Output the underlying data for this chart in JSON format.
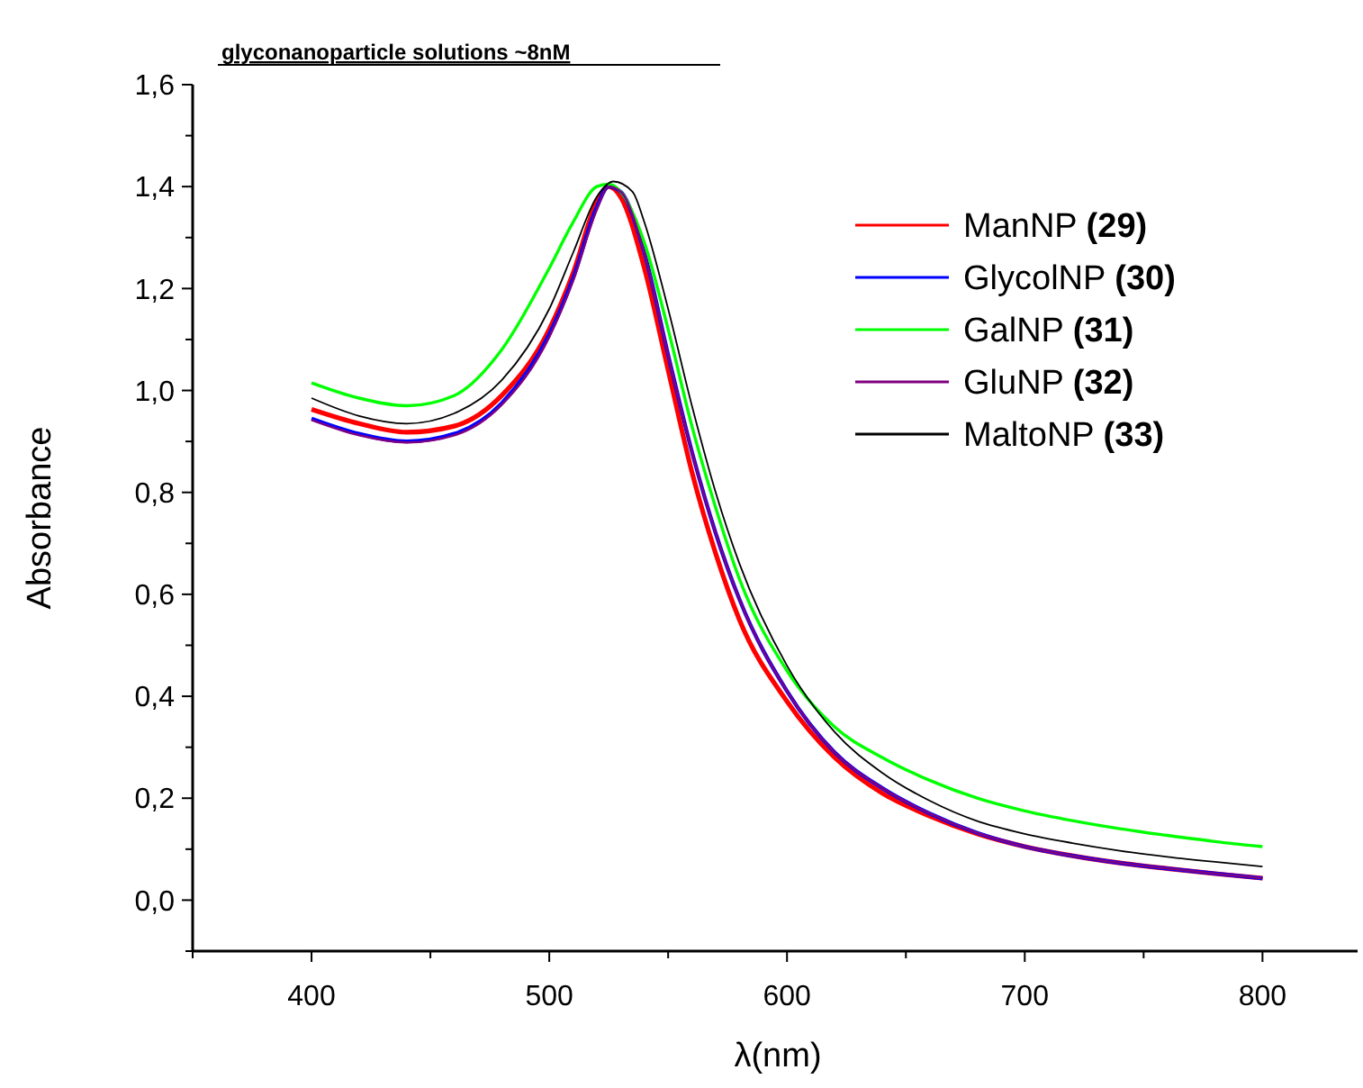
{
  "chart_data": {
    "type": "line",
    "title": "glyconanoparticle solutions ~8nM",
    "xlabel": "λ(nm)",
    "ylabel": "Absorbance",
    "xlim": [
      350,
      840
    ],
    "ylim": [
      -0.1,
      1.6
    ],
    "xticks": [
      {
        "value": 350,
        "label": null
      },
      400,
      {
        "value": 450,
        "label": null
      },
      500,
      {
        "value": 550,
        "label": null
      },
      600,
      {
        "value": 650,
        "label": null
      },
      700,
      {
        "value": 750,
        "label": null
      },
      800
    ],
    "yticks": [
      {
        "value": -0.1,
        "label": null
      },
      {
        "value": 0,
        "label": "0,0"
      },
      {
        "value": 0.1,
        "label": null
      },
      {
        "value": 0.2,
        "label": "0,2"
      },
      {
        "value": 0.3,
        "label": null
      },
      {
        "value": 0.4,
        "label": "0,4"
      },
      {
        "value": 0.5,
        "label": null
      },
      {
        "value": 0.6,
        "label": "0,6"
      },
      {
        "value": 0.7,
        "label": null
      },
      {
        "value": 0.8,
        "label": "0,8"
      },
      {
        "value": 0.9,
        "label": null
      },
      {
        "value": 1.0,
        "label": "1,0"
      },
      {
        "value": 1.1,
        "label": null
      },
      {
        "value": 1.2,
        "label": "1,2"
      },
      {
        "value": 1.3,
        "label": null
      },
      {
        "value": 1.4,
        "label": "1,4"
      },
      {
        "value": 1.5,
        "label": null
      },
      {
        "value": 1.6,
        "label": "1,6"
      }
    ],
    "grid": false,
    "legend": "top right",
    "marker": "none",
    "line_style": "solid",
    "series": [
      {
        "name": "ManNP (29)",
        "color": "#ff0000",
        "x": [
          400,
          420,
          440,
          460,
          480,
          500,
          510,
          520,
          525,
          530,
          540,
          550,
          560,
          570,
          580,
          600,
          620,
          640,
          660,
          680,
          700,
          720,
          740,
          760,
          780,
          800
        ],
        "values": [
          0.963,
          0.935,
          0.918,
          0.93,
          0.99,
          1.12,
          1.23,
          1.37,
          1.4,
          1.38,
          1.24,
          1.04,
          0.84,
          0.68,
          0.55,
          0.39,
          0.28,
          0.21,
          0.165,
          0.13,
          0.105,
          0.087,
          0.073,
          0.062,
          0.052,
          0.043
        ]
      },
      {
        "name": "GlycolNP (30)",
        "color": "#0000ff",
        "x": [
          400,
          420,
          440,
          460,
          480,
          500,
          510,
          520,
          525,
          530,
          540,
          550,
          560,
          570,
          580,
          600,
          620,
          640,
          660,
          680,
          700,
          720,
          740,
          760,
          780,
          800
        ],
        "values": [
          0.945,
          0.915,
          0.9,
          0.915,
          0.975,
          1.11,
          1.22,
          1.36,
          1.4,
          1.39,
          1.27,
          1.07,
          0.88,
          0.72,
          0.59,
          0.41,
          0.29,
          0.22,
          0.17,
          0.132,
          0.105,
          0.087,
          0.073,
          0.062,
          0.052,
          0.043
        ]
      },
      {
        "name": "GalNP (31)",
        "color": "#00ff00",
        "x": [
          400,
          420,
          440,
          460,
          480,
          500,
          510,
          520,
          525,
          530,
          540,
          550,
          560,
          570,
          580,
          600,
          620,
          640,
          660,
          680,
          700,
          720,
          740,
          760,
          780,
          800
        ],
        "values": [
          1.015,
          0.985,
          0.97,
          0.99,
          1.08,
          1.24,
          1.33,
          1.4,
          1.405,
          1.39,
          1.29,
          1.12,
          0.93,
          0.77,
          0.63,
          0.45,
          0.34,
          0.28,
          0.235,
          0.2,
          0.175,
          0.156,
          0.14,
          0.127,
          0.115,
          0.105
        ]
      },
      {
        "name": "GluNP (32)",
        "color": "#800080",
        "x": [
          400,
          420,
          440,
          460,
          480,
          500,
          510,
          520,
          525,
          530,
          540,
          550,
          560,
          570,
          580,
          600,
          620,
          640,
          660,
          680,
          700,
          720,
          740,
          760,
          780,
          800
        ],
        "values": [
          0.942,
          0.912,
          0.898,
          0.912,
          0.972,
          1.105,
          1.215,
          1.355,
          1.4,
          1.39,
          1.27,
          1.07,
          0.88,
          0.72,
          0.59,
          0.41,
          0.29,
          0.22,
          0.17,
          0.132,
          0.105,
          0.087,
          0.073,
          0.062,
          0.052,
          0.043
        ]
      },
      {
        "name": "MaltoNP (33)",
        "color": "#000000",
        "x": [
          400,
          420,
          440,
          460,
          480,
          500,
          510,
          520,
          527,
          535,
          540,
          550,
          560,
          570,
          580,
          600,
          620,
          640,
          660,
          680,
          700,
          720,
          740,
          760,
          780,
          800
        ],
        "values": [
          0.985,
          0.95,
          0.935,
          0.955,
          1.02,
          1.16,
          1.27,
          1.38,
          1.41,
          1.39,
          1.33,
          1.16,
          0.97,
          0.8,
          0.66,
          0.46,
          0.33,
          0.25,
          0.195,
          0.155,
          0.13,
          0.112,
          0.097,
          0.085,
          0.075,
          0.066
        ]
      }
    ]
  }
}
